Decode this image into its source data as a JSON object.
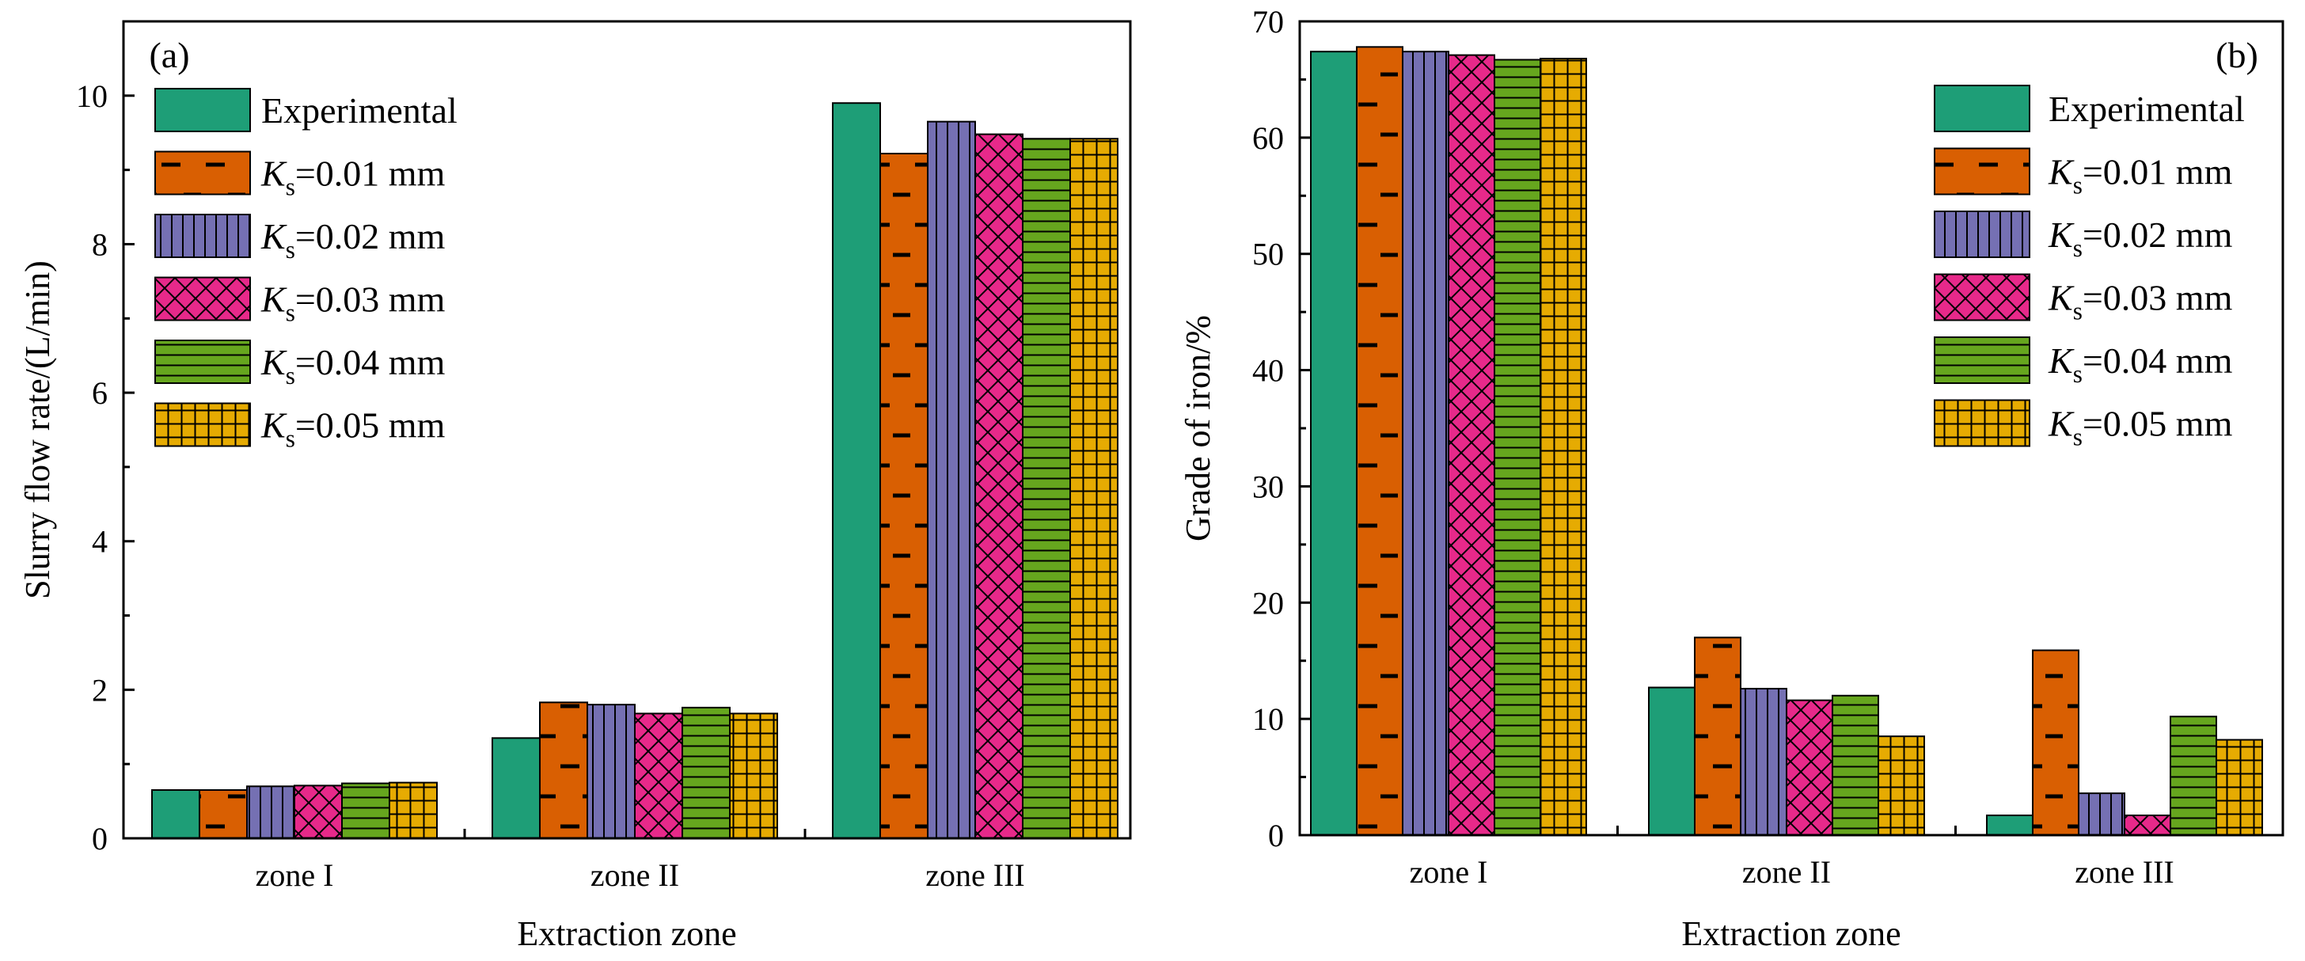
{
  "chart_data": [
    {
      "type": "bar",
      "panel_label": "(a)",
      "title": "",
      "xlabel": "Extraction zone",
      "ylabel": "Slurry flow rate/(L/min)",
      "categories": [
        "zone I",
        "zone II",
        "zone III"
      ],
      "ylim": [
        0,
        11
      ],
      "yticks": [
        0,
        2,
        4,
        6,
        8,
        10
      ],
      "grid": false,
      "legend_position": "top-left",
      "series": [
        {
          "name": "Experimental",
          "values": [
            0.65,
            1.35,
            9.9
          ]
        },
        {
          "name": "Ks=0.01 mm",
          "values": [
            0.65,
            1.83,
            9.22
          ]
        },
        {
          "name": "Ks=0.02 mm",
          "values": [
            0.7,
            1.8,
            9.65
          ]
        },
        {
          "name": "Ks=0.03 mm",
          "values": [
            0.71,
            1.68,
            9.48
          ]
        },
        {
          "name": "Ks=0.04 mm",
          "values": [
            0.74,
            1.76,
            9.42
          ]
        },
        {
          "name": "Ks=0.05 mm",
          "values": [
            0.75,
            1.68,
            9.42
          ]
        }
      ]
    },
    {
      "type": "bar",
      "panel_label": "(b)",
      "title": "",
      "xlabel": "Extraction zone",
      "ylabel": "Grade of iron/%",
      "categories": [
        "zone I",
        "zone II",
        "zone III"
      ],
      "ylim": [
        0,
        70
      ],
      "yticks": [
        0,
        10,
        20,
        30,
        40,
        50,
        60,
        70
      ],
      "grid": false,
      "legend_position": "top-right",
      "series": [
        {
          "name": "Experimental",
          "values": [
            67.4,
            12.7,
            1.7
          ]
        },
        {
          "name": "Ks=0.01 mm",
          "values": [
            67.8,
            17.0,
            15.9
          ]
        },
        {
          "name": "Ks=0.02 mm",
          "values": [
            67.4,
            12.6,
            3.6
          ]
        },
        {
          "name": "Ks=0.03 mm",
          "values": [
            67.1,
            11.6,
            1.7
          ]
        },
        {
          "name": "Ks=0.04 mm",
          "values": [
            66.7,
            12.0,
            10.2
          ]
        },
        {
          "name": "Ks=0.05 mm",
          "values": [
            66.8,
            8.5,
            8.2
          ]
        }
      ]
    }
  ],
  "legend": [
    {
      "main": "Experimental",
      "sub": "",
      "rest": "",
      "color": "#1e9e77",
      "pattern": "solid"
    },
    {
      "main": "K",
      "sub": "s",
      "rest": "=0.01 mm",
      "color": "#d95f02",
      "pattern": "dash"
    },
    {
      "main": "K",
      "sub": "s",
      "rest": "=0.02 mm",
      "color": "#7570b3",
      "pattern": "vlines"
    },
    {
      "main": "K",
      "sub": "s",
      "rest": "=0.03 mm",
      "color": "#e7298a",
      "pattern": "cross"
    },
    {
      "main": "K",
      "sub": "s",
      "rest": "=0.04 mm",
      "color": "#66a61e",
      "pattern": "hlines"
    },
    {
      "main": "K",
      "sub": "s",
      "rest": "=0.05 mm",
      "color": "#e6ab02",
      "pattern": "grid"
    }
  ]
}
